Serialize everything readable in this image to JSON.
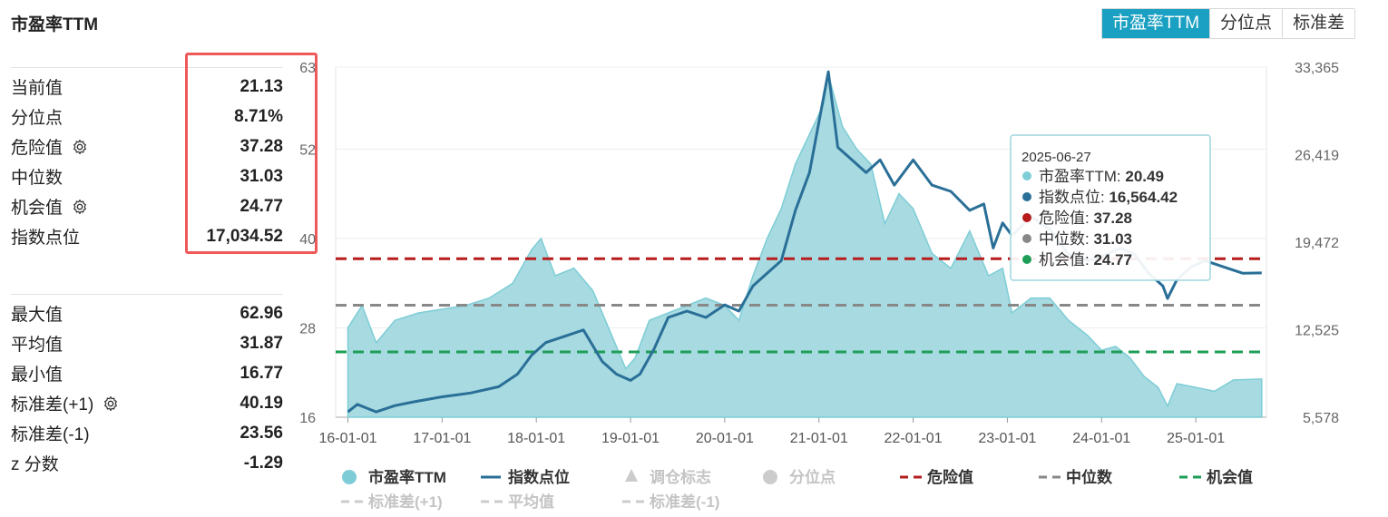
{
  "header": {
    "title": "市盈率TTM"
  },
  "tabs": [
    {
      "label": "市盈率TTM",
      "active": true
    },
    {
      "label": "分位点",
      "active": false
    },
    {
      "label": "标准差",
      "active": false
    }
  ],
  "stats_top": [
    {
      "label": "当前值",
      "value": "21.13",
      "gear": false
    },
    {
      "label": "分位点",
      "value": "8.71%",
      "gear": false
    },
    {
      "label": "危险值",
      "value": "37.28",
      "gear": true
    },
    {
      "label": "中位数",
      "value": "31.03",
      "gear": false
    },
    {
      "label": "机会值",
      "value": "24.77",
      "gear": true
    },
    {
      "label": "指数点位",
      "value": "17,034.52",
      "gear": false
    }
  ],
  "stats_bottom": [
    {
      "label": "最大值",
      "value": "62.96",
      "gear": false
    },
    {
      "label": "平均值",
      "value": "31.87",
      "gear": false
    },
    {
      "label": "最小值",
      "value": "16.77",
      "gear": false
    },
    {
      "label": "标准差(+1)",
      "value": "40.19",
      "gear": true
    },
    {
      "label": "标准差(-1)",
      "value": "23.56",
      "gear": false
    },
    {
      "label": "z 分数",
      "value": "-1.29",
      "gear": false
    }
  ],
  "tooltip": {
    "date": "2025-06-27",
    "items": [
      {
        "label": "市盈率TTM",
        "value": "20.49",
        "color": "#7ecdd6"
      },
      {
        "label": "指数点位",
        "value": "16,564.42",
        "color": "#2a6f97"
      },
      {
        "label": "危险值",
        "value": "37.28",
        "color": "#b71c1c"
      },
      {
        "label": "中位数",
        "value": "31.03",
        "color": "#888888"
      },
      {
        "label": "机会值",
        "value": "24.77",
        "color": "#1e9e57"
      }
    ]
  },
  "legend": [
    {
      "label": "市盈率TTM",
      "kind": "dot",
      "color": "#7ecdd6",
      "active": true
    },
    {
      "label": "指数点位",
      "kind": "line",
      "color": "#2a6f97",
      "active": true
    },
    {
      "label": "调仓标志",
      "kind": "triangle",
      "color": "#cccccc",
      "active": false
    },
    {
      "label": "分位点",
      "kind": "dot",
      "color": "#cccccc",
      "active": false
    },
    {
      "label": "危险值",
      "kind": "dash",
      "color": "#b71c1c",
      "active": true
    },
    {
      "label": "中位数",
      "kind": "dash",
      "color": "#888888",
      "active": true
    },
    {
      "label": "机会值",
      "kind": "dash",
      "color": "#1e9e57",
      "active": true
    },
    {
      "label": "标准差(+1)",
      "kind": "dash",
      "color": "#cccccc",
      "active": false
    },
    {
      "label": "平均值",
      "kind": "dash",
      "color": "#cccccc",
      "active": false
    },
    {
      "label": "标准差(-1)",
      "kind": "dash",
      "color": "#cccccc",
      "active": false
    }
  ],
  "chart_data": {
    "type": "area",
    "title": "市盈率TTM",
    "x_ticks": [
      "16-01-01",
      "17-01-01",
      "18-01-01",
      "19-01-01",
      "20-01-01",
      "21-01-01",
      "22-01-01",
      "23-01-01",
      "24-01-01",
      "25-01-01"
    ],
    "y_left": {
      "ticks": [
        16,
        28,
        40,
        52,
        63
      ],
      "range": [
        16,
        63
      ]
    },
    "y_right": {
      "ticks": [
        "5,578",
        "12,525",
        "19,472",
        "26,419",
        "33,365"
      ],
      "range": [
        5578,
        33365
      ]
    },
    "reference_lines": [
      {
        "name": "危险值",
        "value": 37.28,
        "color": "#b71c1c"
      },
      {
        "name": "中位数",
        "value": 31.03,
        "color": "#888888"
      },
      {
        "name": "机会值",
        "value": 24.77,
        "color": "#1e9e57"
      }
    ],
    "series": [
      {
        "name": "市盈率TTM",
        "axis": "left",
        "color": "#7ecdd6",
        "x": [
          2016.0,
          2016.15,
          2016.3,
          2016.5,
          2016.75,
          2017.0,
          2017.25,
          2017.5,
          2017.75,
          2017.95,
          2018.05,
          2018.2,
          2018.4,
          2018.6,
          2018.8,
          2018.95,
          2019.05,
          2019.2,
          2019.4,
          2019.6,
          2019.8,
          2020.0,
          2020.15,
          2020.3,
          2020.45,
          2020.6,
          2020.75,
          2020.9,
          2021.05,
          2021.1,
          2021.25,
          2021.4,
          2021.55,
          2021.7,
          2021.85,
          2022.0,
          2022.2,
          2022.4,
          2022.6,
          2022.8,
          2022.95,
          2023.05,
          2023.25,
          2023.45,
          2023.65,
          2023.85,
          2024.0,
          2024.15,
          2024.3,
          2024.45,
          2024.6,
          2024.7,
          2024.8,
          2025.0,
          2025.2,
          2025.4,
          2025.7
        ],
        "y": [
          28.0,
          31.0,
          26.0,
          29.0,
          30.0,
          30.5,
          31.0,
          32.0,
          34.0,
          38.5,
          40.0,
          35.0,
          36.0,
          33.0,
          27.0,
          22.5,
          24.0,
          29.0,
          30.0,
          31.0,
          32.0,
          31.0,
          29.0,
          35.0,
          40.0,
          44.0,
          50.0,
          54.0,
          58.0,
          62.0,
          55.0,
          52.0,
          50.0,
          42.0,
          46.0,
          44.0,
          38.0,
          36.0,
          41.0,
          35.0,
          36.0,
          30.0,
          32.0,
          32.0,
          29.0,
          27.0,
          25.0,
          25.5,
          24.0,
          21.5,
          20.0,
          17.5,
          20.5,
          20.0,
          19.5,
          21.0,
          21.13
        ]
      },
      {
        "name": "指数点位",
        "axis": "right",
        "color": "#2a6f97",
        "x": [
          2016.0,
          2016.1,
          2016.2,
          2016.3,
          2016.5,
          2016.7,
          2017.0,
          2017.3,
          2017.6,
          2017.8,
          2017.95,
          2018.1,
          2018.3,
          2018.5,
          2018.7,
          2018.85,
          2019.0,
          2019.1,
          2019.25,
          2019.4,
          2019.6,
          2019.8,
          2020.0,
          2020.15,
          2020.3,
          2020.45,
          2020.6,
          2020.75,
          2020.9,
          2021.0,
          2021.1,
          2021.2,
          2021.35,
          2021.5,
          2021.65,
          2021.8,
          2022.0,
          2022.2,
          2022.4,
          2022.6,
          2022.75,
          2022.85,
          2022.95,
          2023.05,
          2023.25,
          2023.45,
          2023.65,
          2023.85,
          2024.05,
          2024.2,
          2024.35,
          2024.5,
          2024.65,
          2024.7,
          2024.8,
          2024.95,
          2025.1,
          2025.3,
          2025.5,
          2025.7
        ],
        "y": [
          6000,
          6600,
          6300,
          6000,
          6500,
          6800,
          7200,
          7500,
          8000,
          9000,
          10500,
          11500,
          12000,
          12500,
          10000,
          9000,
          8500,
          9000,
          11000,
          13500,
          14000,
          13500,
          14500,
          14000,
          16000,
          17000,
          18000,
          22000,
          25000,
          29000,
          33000,
          27000,
          26000,
          25000,
          26000,
          24000,
          26000,
          24000,
          23500,
          22000,
          22500,
          19000,
          21000,
          20000,
          21500,
          20500,
          18500,
          18000,
          18500,
          19000,
          18500,
          17000,
          16000,
          15000,
          16500,
          17500,
          18000,
          17500,
          17000,
          17034.52
        ]
      }
    ]
  }
}
